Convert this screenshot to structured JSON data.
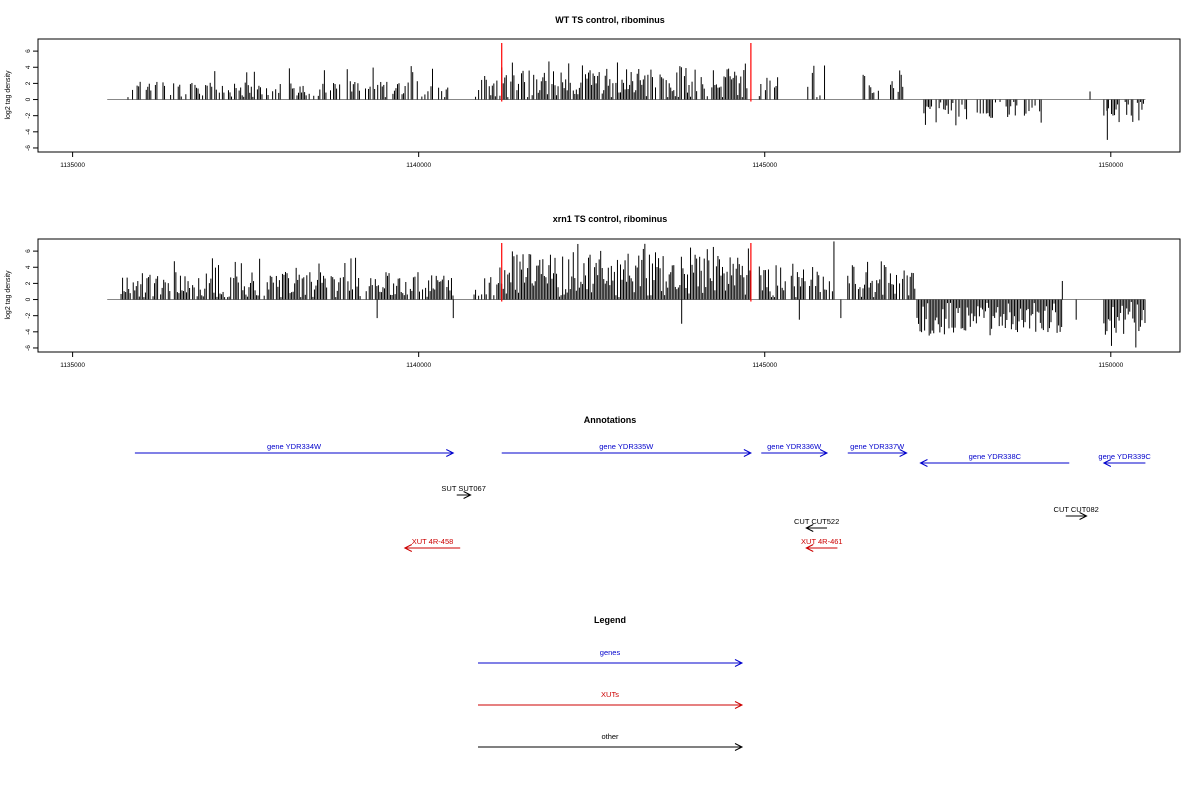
{
  "chart_data": [
    {
      "type": "bar",
      "title": "WT TS control, ribominus",
      "ylabel": "log2 tag density",
      "xlim": [
        1134500,
        1151000
      ],
      "ylim": [
        -6.5,
        7.5
      ],
      "xticks": [
        1135000,
        1140000,
        1145000,
        1150000
      ],
      "yticks": [
        -6,
        -4,
        -2,
        0,
        2,
        4,
        6
      ],
      "data_range": [
        1135500,
        1150500
      ],
      "red_markers": [
        1141200,
        1144800
      ],
      "regions": [
        {
          "start": 1135800,
          "end": 1140500,
          "sign": 1,
          "density": 0.55,
          "mean": 1.2,
          "max": 4.2
        },
        {
          "start": 1140800,
          "end": 1141200,
          "sign": 1,
          "density": 0.6,
          "mean": 1.3,
          "max": 3.5
        },
        {
          "start": 1141200,
          "end": 1144800,
          "sign": 1,
          "density": 0.9,
          "mean": 2.0,
          "max": 5.0
        },
        {
          "start": 1144900,
          "end": 1145200,
          "sign": 1,
          "density": 0.3,
          "mean": 1.5,
          "max": 3.2
        },
        {
          "start": 1145600,
          "end": 1146000,
          "sign": 1,
          "density": 0.3,
          "mean": 1.8,
          "max": 4.8
        },
        {
          "start": 1146400,
          "end": 1147000,
          "sign": 1,
          "density": 0.4,
          "mean": 1.6,
          "max": 4.0
        },
        {
          "start": 1147300,
          "end": 1149000,
          "sign": -1,
          "density": 0.5,
          "mean": 1.2,
          "max": 3.2
        },
        {
          "start": 1149900,
          "end": 1150500,
          "sign": -1,
          "density": 0.7,
          "mean": 1.5,
          "max": 5.0
        }
      ],
      "spikes": [
        {
          "x": 1149700,
          "y": 1.0
        },
        {
          "x": 1149950,
          "y": -5.0
        }
      ]
    },
    {
      "type": "bar",
      "title": "xrn1 TS control, ribominus",
      "ylabel": "log2 tag density",
      "xlim": [
        1134500,
        1151000
      ],
      "ylim": [
        -6.5,
        7.5
      ],
      "xticks": [
        1135000,
        1140000,
        1145000,
        1150000
      ],
      "yticks": [
        -6,
        -4,
        -2,
        0,
        2,
        4,
        6
      ],
      "data_range": [
        1135500,
        1150500
      ],
      "red_markers": [
        1141200,
        1144800
      ],
      "regions": [
        {
          "start": 1135700,
          "end": 1140500,
          "sign": 1,
          "density": 0.85,
          "mean": 1.8,
          "max": 5.2
        },
        {
          "start": 1140800,
          "end": 1141200,
          "sign": 1,
          "density": 0.8,
          "mean": 1.8,
          "max": 4.0
        },
        {
          "start": 1141200,
          "end": 1144800,
          "sign": 1,
          "density": 1.0,
          "mean": 3.0,
          "max": 7.0
        },
        {
          "start": 1144900,
          "end": 1146000,
          "sign": 1,
          "density": 0.8,
          "mean": 2.2,
          "max": 5.0
        },
        {
          "start": 1146200,
          "end": 1147200,
          "sign": 1,
          "density": 0.8,
          "mean": 2.2,
          "max": 4.8
        },
        {
          "start": 1147200,
          "end": 1149300,
          "sign": -1,
          "density": 1.0,
          "mean": 2.2,
          "max": 4.5
        },
        {
          "start": 1149900,
          "end": 1150500,
          "sign": -1,
          "density": 1.0,
          "mean": 2.6,
          "max": 6.0
        }
      ],
      "spikes": [
        {
          "x": 1139400,
          "y": -2.3
        },
        {
          "x": 1140500,
          "y": -2.3
        },
        {
          "x": 1143800,
          "y": -3.0
        },
        {
          "x": 1145500,
          "y": -2.5
        },
        {
          "x": 1146000,
          "y": 7.2
        },
        {
          "x": 1146100,
          "y": -2.3
        },
        {
          "x": 1149300,
          "y": 2.3
        },
        {
          "x": 1149500,
          "y": -2.5
        }
      ]
    }
  ],
  "annotations": {
    "title": "Annotations",
    "features": [
      {
        "label": "gene YDR334W",
        "start": 1135900,
        "end": 1140500,
        "strand": "+",
        "color": "#0000cc",
        "row": 0
      },
      {
        "label": "gene YDR335W",
        "start": 1141200,
        "end": 1144800,
        "strand": "+",
        "color": "#0000cc",
        "row": 0
      },
      {
        "label": "gene YDR336W",
        "start": 1144950,
        "end": 1145900,
        "strand": "+",
        "color": "#0000cc",
        "row": 0
      },
      {
        "label": "gene YDR337W",
        "start": 1146200,
        "end": 1147050,
        "strand": "+",
        "color": "#0000cc",
        "row": 0
      },
      {
        "label": "gene YDR338C",
        "start": 1147250,
        "end": 1149400,
        "strand": "-",
        "color": "#0000cc",
        "row": 1
      },
      {
        "label": "gene YDR339C",
        "start": 1149900,
        "end": 1150500,
        "strand": "-",
        "color": "#0000cc",
        "row": 1
      },
      {
        "label": "SUT SUT067",
        "start": 1140550,
        "end": 1140750,
        "strand": "+",
        "color": "#000000",
        "row": 2
      },
      {
        "label": "CUT CUT522",
        "start": 1145600,
        "end": 1145900,
        "strand": "-",
        "color": "#000000",
        "row": 3
      },
      {
        "label": "CUT CUT082",
        "start": 1149350,
        "end": 1149650,
        "strand": "+",
        "color": "#000000",
        "row": 4
      },
      {
        "label": "XUT 4R-458",
        "start": 1139800,
        "end": 1140600,
        "strand": "-",
        "color": "#cc0000",
        "row": 5
      },
      {
        "label": "XUT 4R-461",
        "start": 1145600,
        "end": 1146050,
        "strand": "-",
        "color": "#cc0000",
        "row": 5
      }
    ]
  },
  "legend": {
    "title": "Legend",
    "items": [
      {
        "label": "genes",
        "color": "#0000cc"
      },
      {
        "label": "XUTs",
        "color": "#cc0000"
      },
      {
        "label": "other",
        "color": "#000000"
      }
    ]
  }
}
